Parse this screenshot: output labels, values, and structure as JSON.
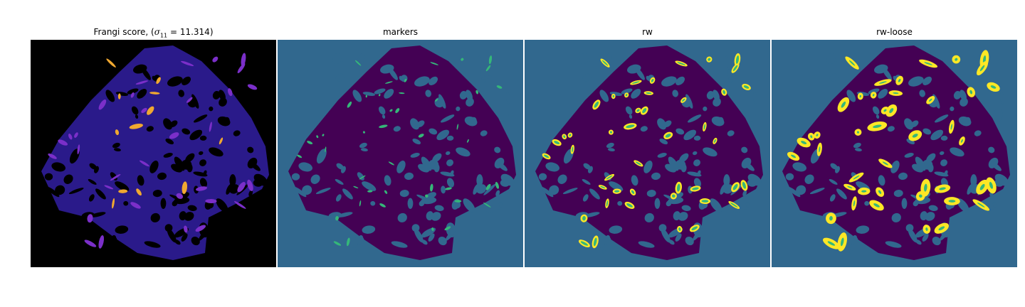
{
  "panels": [
    {
      "id": "frangi",
      "title_prefix": "Frangi score, (",
      "title_symbol": "σ",
      "title_subscript": "11",
      "title_suffix": " = 11.314)",
      "colormap": "magma-like"
    },
    {
      "id": "markers",
      "title": "markers",
      "colormap": "viridis-labels"
    },
    {
      "id": "rw",
      "title": "rw",
      "colormap": "viridis-labels"
    },
    {
      "id": "rw-loose",
      "title": "rw-loose",
      "colormap": "viridis-labels"
    }
  ],
  "colors": {
    "background_label": "#31688e",
    "tissue_label": "#440154",
    "marker_label": "#35b779",
    "vessel_label": "#fde725",
    "frangi_background": "#000000",
    "frangi_low": "#2a1a8a",
    "frangi_mid": "#7b2fc9",
    "frangi_high": "#f0a830"
  }
}
